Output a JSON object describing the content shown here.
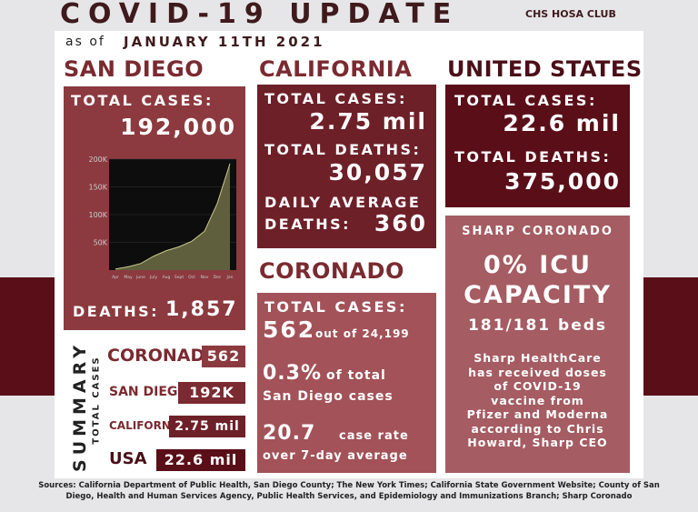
{
  "header": {
    "title": "COVID-19 UPDATE",
    "club": "CHS HOSA CLUB",
    "date_prefix": "as of",
    "date": "JANUARY 11TH 2021"
  },
  "san_diego": {
    "heading": "SAN DIEGO",
    "total_cases_label": "TOTAL CASES:",
    "total_cases": "192,000",
    "deaths_label": "DEATHS:",
    "deaths": "1,857",
    "chart": {
      "type": "area",
      "categories": [
        "Apr",
        "May",
        "June",
        "July",
        "Aug",
        "Sept",
        "Oct",
        "Nov",
        "Dec",
        "Jan"
      ],
      "values": [
        2000,
        6000,
        12000,
        25000,
        35000,
        42000,
        52000,
        70000,
        120000,
        192000
      ],
      "ylim": [
        0,
        200000
      ],
      "yticks": [
        {
          "value": 50000,
          "label": "50K"
        },
        {
          "value": 100000,
          "label": "100K"
        },
        {
          "value": 150000,
          "label": "150K"
        },
        {
          "value": 200000,
          "label": "200K"
        }
      ],
      "color": "#5f5f3e"
    }
  },
  "california": {
    "heading": "CALIFORNIA",
    "total_cases_label": "TOTAL CASES:",
    "total_cases": "2.75 mil",
    "total_deaths_label": "TOTAL DEATHS:",
    "total_deaths": "30,057",
    "daily_label_1": "DAILY AVERAGE",
    "daily_label_2": "DEATHS:",
    "daily_deaths": "360"
  },
  "united_states": {
    "heading": "UNITED STATES",
    "total_cases_label": "TOTAL CASES:",
    "total_cases": "22.6 mil",
    "total_deaths_label": "TOTAL DEATHS:",
    "total_deaths": "375,000"
  },
  "coronado": {
    "heading": "CORONADO",
    "total_cases_label": "TOTAL CASES:",
    "cases": "562",
    "cases_suffix": "out of 24,199",
    "percent": "0.3%",
    "percent_text_1": "of total",
    "percent_text_2": "San Diego cases",
    "rate": "20.7",
    "rate_text_1": "case rate",
    "rate_text_2": "over 7-day average"
  },
  "sharp": {
    "heading": "SHARP CORONADO",
    "icu_1": "0% ICU",
    "icu_2": "CAPACITY",
    "beds": "181/181 beds",
    "note": [
      "Sharp HealthCare",
      "has received doses",
      "of COVID-19",
      "vaccine from",
      "Pfizer and Moderna",
      "according to Chris",
      "Howard, Sharp CEO"
    ]
  },
  "summary": {
    "title": "SUMMARY",
    "subtitle": "TOTAL CASES",
    "rows": [
      {
        "label": "CORONADO",
        "value": "562"
      },
      {
        "label": "SAN DIEGO",
        "value": "192K"
      },
      {
        "label": "CALIFORNIA",
        "value": "2.75 mil"
      },
      {
        "label": "USA",
        "value": "22.6 mil"
      }
    ]
  },
  "sources": "Sources: California Department of Public Health, San Diego County; The New York Times; California State Government Website; County of San Diego, Health and Human Services Agency, Public Health Services, and Epidemiology and Immunizations Branch; Sharp Coronado"
}
